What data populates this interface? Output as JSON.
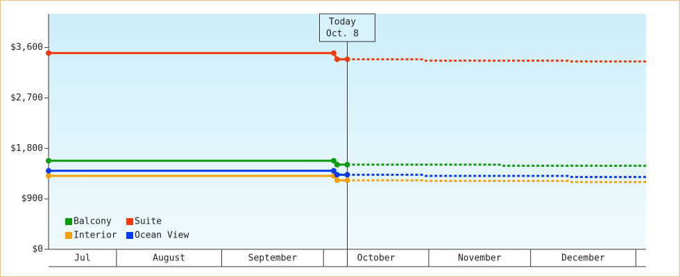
{
  "chart_data": {
    "type": "line",
    "xlim": [
      11,
      187
    ],
    "month_starts": [
      31,
      62,
      92,
      123,
      153,
      184
    ],
    "months": [
      "Jul",
      "August",
      "September",
      "October",
      "November",
      "December"
    ],
    "ylim": [
      0,
      4200
    ],
    "yticks": [
      {
        "value": 0,
        "label": "$0"
      },
      {
        "value": 900,
        "label": "$900"
      },
      {
        "value": 1800,
        "label": "$1,800"
      },
      {
        "value": 2700,
        "label": "$2,700"
      },
      {
        "value": 3600,
        "label": "$3,600"
      }
    ],
    "today": {
      "x": 99,
      "label": "Today",
      "date": "Oct. 8"
    },
    "series": [
      {
        "name": "Balcony",
        "color": "#0a9a0a",
        "x": [
          11,
          95,
          96,
          99
        ],
        "values": [
          1580,
          1580,
          1510,
          1510
        ],
        "forecast_x": [
          99,
          144,
          145,
          187
        ],
        "forecast_values": [
          1510,
          1510,
          1490,
          1490
        ]
      },
      {
        "name": "Suite",
        "color": "#f03a0a",
        "x": [
          11,
          95,
          96,
          99
        ],
        "values": [
          3500,
          3500,
          3390,
          3390
        ],
        "forecast_x": [
          99,
          121,
          122,
          164,
          165,
          187
        ],
        "forecast_values": [
          3390,
          3390,
          3365,
          3365,
          3350,
          3350
        ]
      },
      {
        "name": "Interior",
        "color": "#f5a00a",
        "x": [
          11,
          95,
          96,
          99
        ],
        "values": [
          1310,
          1310,
          1230,
          1230
        ],
        "forecast_x": [
          99,
          121,
          122,
          164,
          165,
          187
        ],
        "forecast_values": [
          1230,
          1230,
          1220,
          1220,
          1200,
          1200
        ]
      },
      {
        "name": "Ocean View",
        "color": "#0a3af0",
        "x": [
          11,
          95,
          96,
          99
        ],
        "values": [
          1400,
          1400,
          1330,
          1330
        ],
        "forecast_x": [
          99,
          121,
          122,
          164,
          165,
          187
        ],
        "forecast_values": [
          1330,
          1330,
          1310,
          1310,
          1290,
          1290
        ]
      }
    ]
  }
}
